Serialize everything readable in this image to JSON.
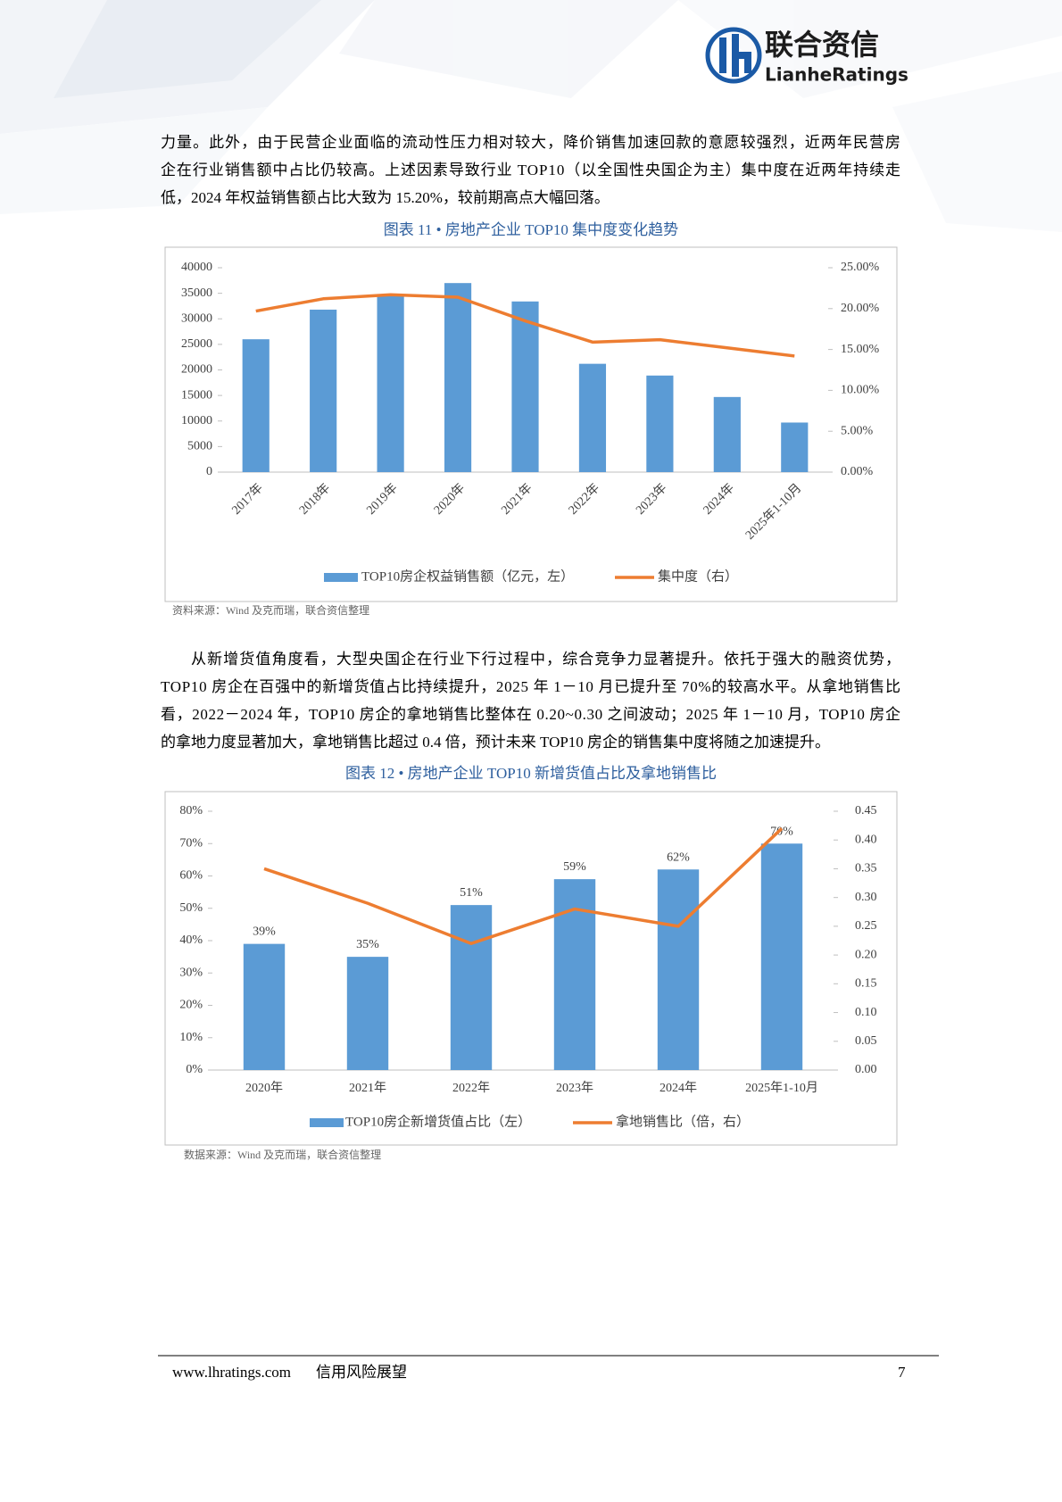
{
  "header": {
    "logo_cn": "联合资信",
    "logo_en": "LianheRatings"
  },
  "paragraphs": [
    {
      "lines": [
        "力量。此外，由于民营企业面临的流动性压力相对较大，降价销售加速回款的意愿较强烈，近两年民营房",
        "企在行业销售额中占比仍较高。上述因素导致行业 TOP10（以全国性央国企为主）集中度在近两年持续走",
        "低，2024 年权益销售额占比大致为 15.20%，较前期高点大幅回落。"
      ]
    },
    {
      "lines": [
        "从新增货值角度看，大型央国企在行业下行过程中，综合竞争力显著提升。依托于强大的融资优势，",
        "TOP10 房企在百强中的新增货值占比持续提升，2025 年 1－10 月已提升至 70%的较高水平。从拿地销售比",
        "看，2022－2024 年，TOP10 房企的拿地销售比整体在 0.20~0.30 之间波动；2025 年 1－10 月，TOP10 房企",
        "的拿地力度显著加大，拿地销售比超过 0.4 倍，预计未来 TOP10 房企的销售集中度将随之加速提升。"
      ]
    }
  ],
  "chart_data": [
    {
      "type": "bar",
      "title": "图表 11 • 房地产企业 TOP10 集中度变化趋势",
      "categories": [
        "2017年",
        "2018年",
        "2019年",
        "2020年",
        "2021年",
        "2022年",
        "2023年",
        "2024年",
        "2025年1-10月"
      ],
      "series": [
        {
          "name": "TOP10房企权益销售额（亿元，左）",
          "color": "#5b9bd5",
          "type": "bar",
          "values": [
            26000,
            31800,
            34500,
            37000,
            33400,
            21200,
            18900,
            14700,
            9700
          ]
        },
        {
          "name": "集中度（右）",
          "color": "#ed7d31",
          "type": "line",
          "axis": "y2",
          "values": [
            19.7,
            21.2,
            21.7,
            21.4,
            18.5,
            15.9,
            16.2,
            15.2,
            14.2
          ]
        }
      ],
      "ylim": [
        0,
        40000
      ],
      "yticks": [
        0,
        5000,
        10000,
        15000,
        20000,
        25000,
        30000,
        35000,
        40000
      ],
      "y2lim": [
        0,
        25
      ],
      "y2ticks": [
        {
          "value": 0,
          "label": "0.00%"
        },
        {
          "value": 5,
          "label": "5.00%"
        },
        {
          "value": 10,
          "label": "10.00%"
        },
        {
          "value": 15,
          "label": "15.00%"
        },
        {
          "value": 20,
          "label": "20.00%"
        },
        {
          "value": 25,
          "label": "25.00%"
        }
      ],
      "legend": "bottom",
      "source": "资料来源：Wind 及克而瑞，联合资信整理"
    },
    {
      "type": "bar",
      "title": "图表 12 • 房地产企业 TOP10 新增货值占比及拿地销售比",
      "categories": [
        "2020年",
        "2021年",
        "2022年",
        "2023年",
        "2024年",
        "2025年1-10月"
      ],
      "series": [
        {
          "name": "TOP10房企新增货值占比（左）",
          "color": "#5b9bd5",
          "type": "bar",
          "values": [
            39,
            35,
            51,
            59,
            62,
            70
          ],
          "value_labels": [
            "39%",
            "35%",
            "51%",
            "59%",
            "62%",
            "70%"
          ]
        },
        {
          "name": "拿地销售比（倍，右）",
          "color": "#ed7d31",
          "type": "line",
          "axis": "y2",
          "values": [
            0.35,
            0.29,
            0.22,
            0.28,
            0.25,
            0.42
          ]
        }
      ],
      "ylim": [
        0,
        80
      ],
      "yticks": [
        {
          "value": 0,
          "label": "0%"
        },
        {
          "value": 10,
          "label": "10%"
        },
        {
          "value": 20,
          "label": "20%"
        },
        {
          "value": 30,
          "label": "30%"
        },
        {
          "value": 40,
          "label": "40%"
        },
        {
          "value": 50,
          "label": "50%"
        },
        {
          "value": 60,
          "label": "60%"
        },
        {
          "value": 70,
          "label": "70%"
        },
        {
          "value": 80,
          "label": "80%"
        }
      ],
      "y2lim": [
        0,
        0.45
      ],
      "y2ticks": [
        {
          "value": 0,
          "label": "0.00"
        },
        0.05,
        {
          "value": 0.1,
          "label": "0.10"
        },
        0.15,
        {
          "value": 0.2,
          "label": "0.20"
        },
        0.25,
        {
          "value": 0.3,
          "label": "0.30"
        },
        0.35,
        {
          "value": 0.4,
          "label": "0.40"
        },
        0.45
      ],
      "legend": "bottom",
      "source": "数据来源：Wind 及克而瑞，联合资信整理"
    }
  ],
  "footer": {
    "url": "www.lhratings.com",
    "slogan": "信用风险展望",
    "page": 7
  }
}
